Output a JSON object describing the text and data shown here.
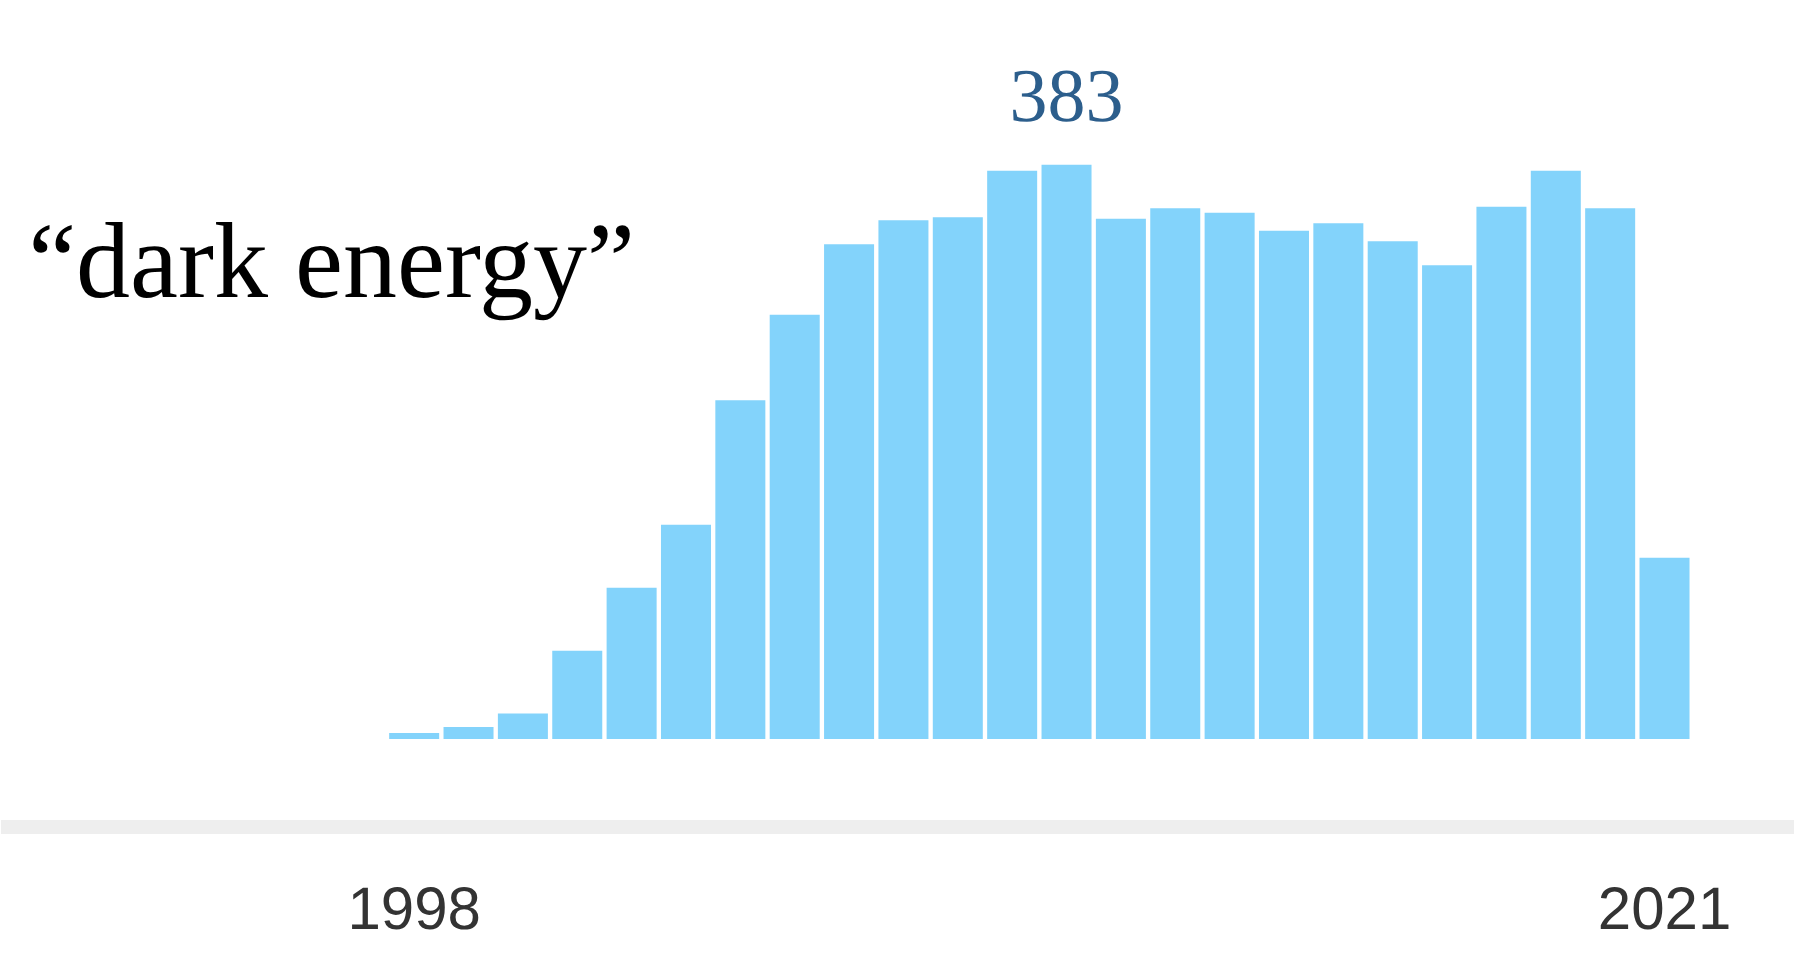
{
  "chart_data": {
    "type": "bar",
    "title": "“dark energy”",
    "x": [
      1998,
      1999,
      2000,
      2001,
      2002,
      2003,
      2004,
      2005,
      2006,
      2007,
      2008,
      2009,
      2010,
      2011,
      2012,
      2013,
      2014,
      2015,
      2016,
      2017,
      2018,
      2019,
      2020,
      2021
    ],
    "values": [
      4,
      8,
      17,
      59,
      101,
      143,
      226,
      283,
      330,
      346,
      348,
      379,
      383,
      347,
      354,
      351,
      339,
      344,
      332,
      316,
      355,
      379,
      354,
      121
    ],
    "value_labels": [
      null,
      null,
      null,
      null,
      null,
      null,
      null,
      null,
      null,
      null,
      null,
      null,
      "383",
      null,
      null,
      null,
      null,
      null,
      null,
      null,
      null,
      null,
      null,
      null
    ],
    "color": "#83d3fb",
    "xlim": [
      1990.4,
      2023.4
    ],
    "xticks": [
      1998,
      2021
    ],
    "grid": false,
    "tick_labels": "x"
  }
}
